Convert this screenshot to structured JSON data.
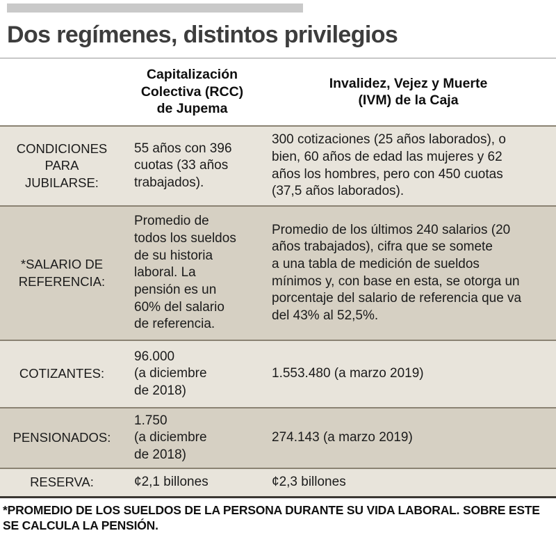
{
  "page": {
    "title": "Dos regímenes, distintos privilegios",
    "footnote_display": "*PROMEDIO DE LOS SUELDOS DE LA PERSONA DURANTE SU VIDA LABORAL. SOBRE ESTE\nSE CALCULA LA PENSIÓN."
  },
  "colors": {
    "topbar": "#c9c9c9",
    "title_text": "#3d3d3d",
    "row_light": "#e8e4db",
    "row_dark": "#d6d0c3",
    "row_divider": "#8a8272",
    "table_bottom_border": "#3a3732"
  },
  "table": {
    "header": {
      "rcc": "Capitalización\nColectiva (RCC)\nde Jupema",
      "ivm": "Invalidez, Vejez y Muerte\n(IVM) de la Caja"
    },
    "rows": [
      {
        "label": "CONDICIONES\nPARA\nJUBILARSE:",
        "rcc": "55 años con 396\ncuotas (33 años\ntrabajados).",
        "ivm": "300 cotizaciones (25 años laborados), o\nbien, 60 años de edad las mujeres y 62\naños los hombres, pero con 450 cuotas\n(37,5 años laborados)."
      },
      {
        "label": "*SALARIO DE\nREFERENCIA:",
        "rcc": "Promedio de\ntodos los sueldos\nde su historia\nlaboral. La\npensión es un\n60% del salario\nde referencia.",
        "ivm": "Promedio de los últimos 240 salarios (20\naños trabajados), cifra que se somete\na una tabla de medición de sueldos\nmínimos y, con base en esta, se otorga un\nporcentaje del salario de referencia que va\ndel 43% al 52,5%."
      },
      {
        "label": "COTIZANTES:",
        "rcc": "96.000\n(a diciembre\nde 2018)",
        "ivm": "1.553.480 (a marzo 2019)"
      },
      {
        "label": "PENSIONADOS:",
        "rcc": "1.750\n(a diciembre\nde 2018)",
        "ivm": "274.143 (a marzo 2019)"
      },
      {
        "label": "RESERVA:",
        "rcc": "¢2,1 billones",
        "ivm": "¢2,3 billones"
      }
    ]
  },
  "chart_data": {
    "type": "table",
    "title": "Dos regímenes, distintos privilegios",
    "columns": [
      "",
      "Capitalización Colectiva (RCC) de Jupema",
      "Invalidez, Vejez y Muerte (IVM) de la Caja"
    ],
    "rows": [
      [
        "CONDICIONES PARA JUBILARSE:",
        "55 años con 396 cuotas (33 años trabajados).",
        "300 cotizaciones (25 años laborados), o bien, 60 años de edad las mujeres y 62 años los hombres, pero con 450 cuotas (37,5 años laborados)."
      ],
      [
        "*SALARIO DE REFERENCIA:",
        "Promedio de todos los sueldos de su historia laboral. La pensión es un 60% del salario de referencia.",
        "Promedio de los últimos 240 salarios (20 años trabajados), cifra que se somete a una tabla de medición de sueldos mínimos y, con base en esta, se otorga un porcentaje del salario de referencia que va del 43% al 52,5%."
      ],
      [
        "COTIZANTES:",
        "96.000 (a diciembre de 2018)",
        "1.553.480 (a marzo 2019)"
      ],
      [
        "PENSIONADOS:",
        "1.750 (a diciembre de 2018)",
        "274.143 (a marzo 2019)"
      ],
      [
        "RESERVA:",
        "¢2,1 billones",
        "¢2,3 billones"
      ]
    ],
    "footnote": "*PROMEDIO DE LOS SUELDOS DE LA PERSONA DURANTE SU VIDA LABORAL. SOBRE ESTE SE CALCULA LA PENSIÓN."
  }
}
